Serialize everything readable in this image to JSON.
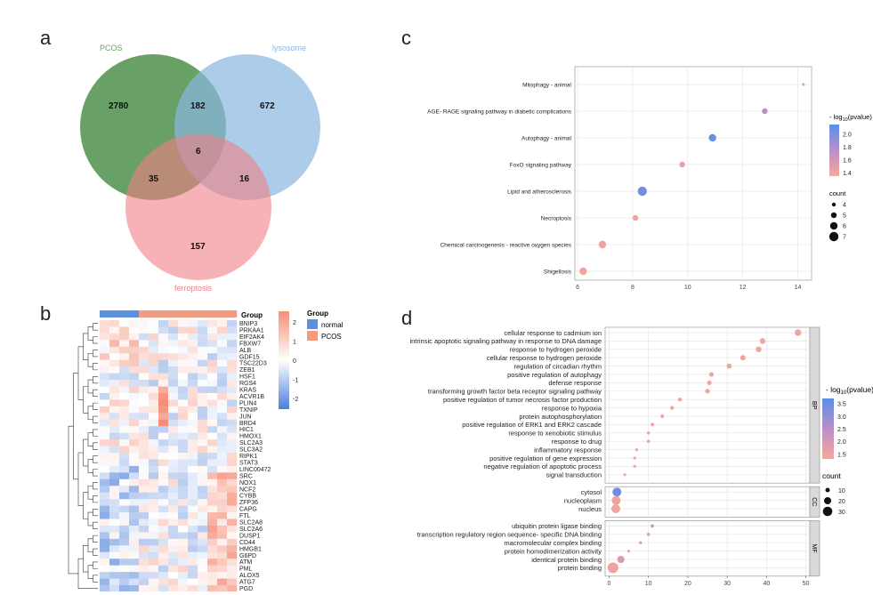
{
  "panels": {
    "a": "a",
    "b": "b",
    "c": "c",
    "d": "d"
  },
  "colors": {
    "pcos": "#4e8f4a",
    "lysosome": "#8ab6e0",
    "ferroptosis": "#f07f86",
    "heat_low": "#4d7fd8",
    "heat_mid": "#ffffff",
    "heat_high": "#f58e77",
    "normal": "#5b8fe0",
    "pcos_group": "#f59b82",
    "dot_low": "#f7a79a",
    "dot_high": "#5b8fe8"
  },
  "venn": {
    "labels": {
      "pcos": "PCOS",
      "lysosome": "lysosome",
      "ferroptosis": "ferroptosis"
    },
    "counts": {
      "pcos_only": "2780",
      "pcos_lyso": "182",
      "lyso_only": "672",
      "center": "6",
      "pcos_ferro": "35",
      "lyso_ferro": "16",
      "ferro_only": "157"
    }
  },
  "heatmap": {
    "group_title": "Group",
    "legend_title": "Group",
    "legend_items": [
      "normal",
      "PCOS"
    ],
    "scale_ticks": [
      "2",
      "1",
      "0",
      "-1",
      "-2"
    ],
    "groups": [
      "normal",
      "normal",
      "normal",
      "normal",
      "PCOS",
      "PCOS",
      "PCOS",
      "PCOS",
      "PCOS",
      "PCOS",
      "PCOS",
      "PCOS",
      "PCOS",
      "PCOS"
    ],
    "genes": [
      "BNIP3",
      "PRKAA1",
      "EIF2AK4",
      "FBXW7",
      "ALB",
      "GDF15",
      "TSC22D3",
      "ZEB1",
      "HSF1",
      "RGS4",
      "KRAS",
      "ACVR1B",
      "PLIN4",
      "TXNIP",
      "JUN",
      "BRD4",
      "HIC1",
      "HMOX1",
      "SLC2A3",
      "SLC3A2",
      "RIPK1",
      "STAT3",
      "LINC00472",
      "SRC",
      "NOX1",
      "NCF2",
      "CYBB",
      "ZFP36",
      "CAPG",
      "FTL",
      "SLC2A8",
      "SLC2A6",
      "DUSP1",
      "CD44",
      "HMGB1",
      "G6PD",
      "ATM",
      "PML",
      "ALOX5",
      "ATG7",
      "PGD"
    ]
  },
  "chart_data": [
    {
      "type": "scatter",
      "panel": "c",
      "categories": [
        "Mitophagy - animal",
        "AGE- RAGE signaling pathway in diabetic complications",
        "Autophagy - animal",
        "FoxO signaling pathway",
        "Lipid and atherosclerosis",
        "Necroptosis",
        "Chemical carcinogenesis - reactive oxygen species",
        "Shigellosis"
      ],
      "x": [
        14.2,
        12.8,
        10.9,
        9.8,
        8.35,
        8.1,
        6.9,
        6.2
      ],
      "counts": [
        3,
        5,
        6,
        5,
        7,
        5,
        6,
        6
      ],
      "neglog10p": [
        1.4,
        1.75,
        2.1,
        1.45,
        2.05,
        1.4,
        1.4,
        1.4
      ],
      "x_ticks": [
        "6",
        "8",
        "10",
        "12",
        "14"
      ],
      "xlim": [
        5.9,
        14.5
      ],
      "legend_color_title": "- log",
      "legend_color_sub": "10",
      "legend_color_suffix": "(pvalue)",
      "legend_color_ticks": [
        "2.0",
        "1.8",
        "1.6",
        "1.4"
      ],
      "legend_color_range": [
        1.35,
        2.15
      ],
      "legend_size_title": "count",
      "legend_size_ticks": [
        "4",
        "5",
        "6",
        "7"
      ]
    },
    {
      "type": "scatter",
      "panel": "d",
      "facets": [
        {
          "name": "BP",
          "categories": [
            "cellular response to cadmium ion",
            "intrinsic apoptotic signaling pathway in response to DNA damage",
            "response to hydrogen peroxide",
            "cellular response to hydrogen peroxide",
            "regulation of circadian rhythm",
            "positive regulation of autophagy",
            "defense response",
            "transforming growth factor beta receptor signaling pathway",
            "positive regulation of tumor necrosis factor production",
            "response to hypoxia",
            "protein autophosphorylation",
            "positive regulation of ERK1 and ERK2 cascade",
            "response to xenobiotic stimulus",
            "response to drug",
            "inflammatory response",
            "positive regulation of gene expression",
            "negative regulation of apoptotic process",
            "signal transduction"
          ],
          "x": [
            48,
            39,
            38,
            34,
            30.5,
            26,
            25.5,
            25,
            18,
            16,
            13.5,
            11,
            10,
            10,
            7,
            6.5,
            6.5,
            4
          ],
          "neglog10p": [
            1.4,
            1.4,
            1.4,
            1.5,
            1.4,
            1.4,
            1.4,
            1.5,
            1.4,
            1.5,
            1.5,
            1.5,
            1.4,
            1.4,
            1.5,
            1.4,
            1.5,
            1.5
          ]
        },
        {
          "name": "CC",
          "categories": [
            "cytosol",
            "nucleoplasm",
            "nucleus"
          ],
          "x": [
            2,
            1.8,
            1.7
          ],
          "neglog10p": [
            3.5,
            1.5,
            1.4
          ]
        },
        {
          "name": "MF",
          "categories": [
            "ubiquitin protein ligase binding",
            "transcription regulatory region sequence- specific DNA binding",
            "macromolecular complex binding",
            "protein homodimerization activity",
            "identical protein binding",
            "protein binding"
          ],
          "x": [
            11,
            10,
            8,
            5,
            3,
            1
          ],
          "neglog10p": [
            2.2,
            1.8,
            1.8,
            1.5,
            1.9,
            1.5
          ]
        }
      ],
      "x_ticks": [
        "0",
        "10",
        "20",
        "30",
        "40",
        "50"
      ],
      "xlim": [
        -1,
        51
      ],
      "legend_color_title": "- log",
      "legend_color_sub": "10",
      "legend_color_suffix": "(pvalue)",
      "legend_color_ticks": [
        "3.5",
        "3.0",
        "2.5",
        "2.0",
        "1.5"
      ],
      "legend_color_range": [
        1.3,
        3.7
      ],
      "legend_size_title": "count",
      "legend_size_ticks": [
        "10",
        "20",
        "30"
      ]
    }
  ]
}
